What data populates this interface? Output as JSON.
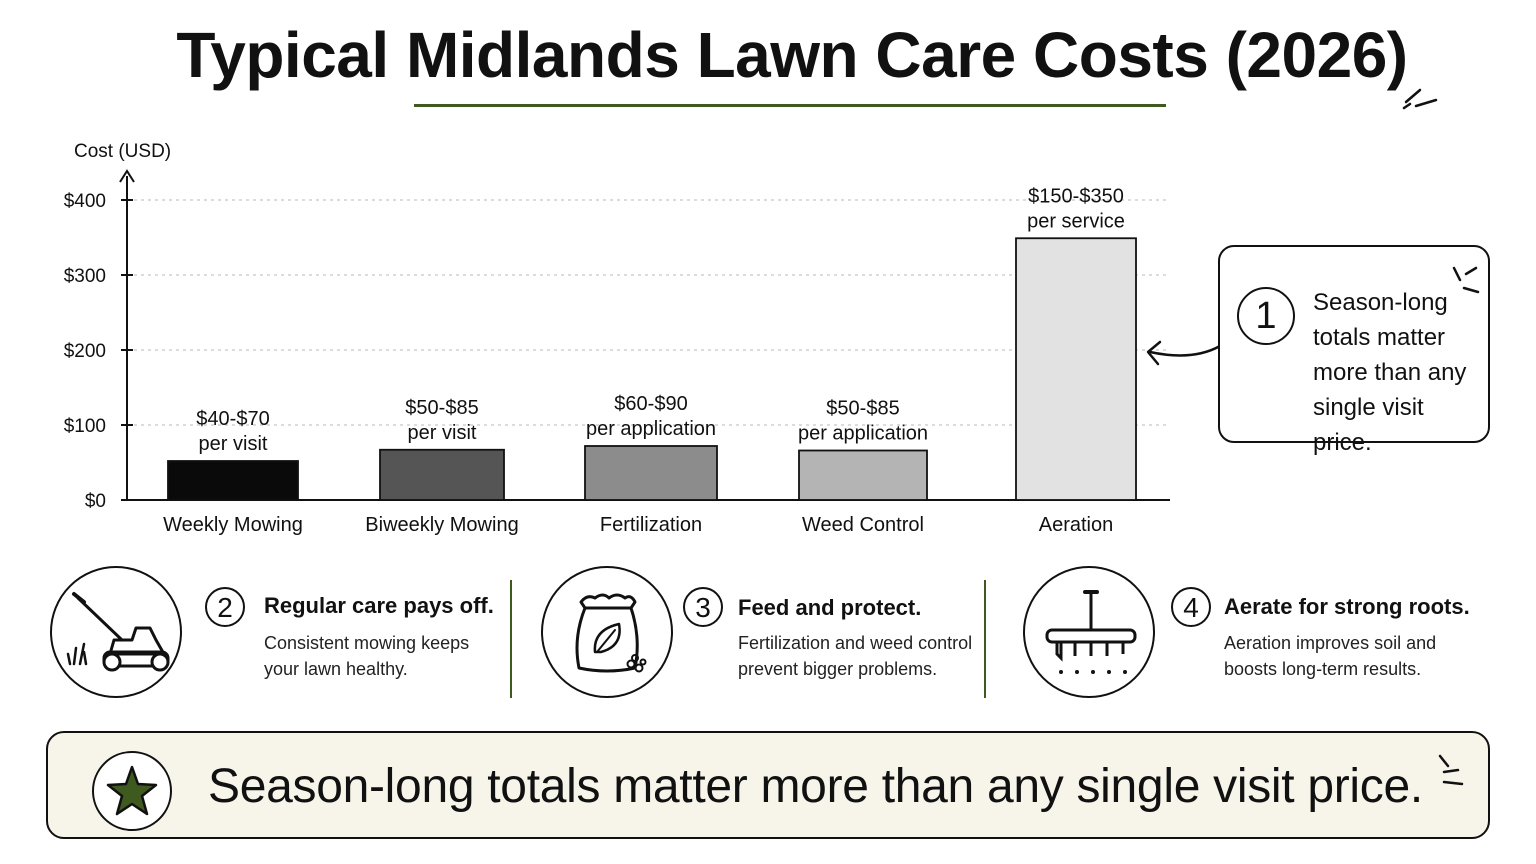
{
  "title": "Typical Midlands Lawn Care Costs (2026)",
  "colors": {
    "accent": "#3e5a1e",
    "banner_bg": "#f7f4ea",
    "star_fill": "#3e5a1e"
  },
  "chart_data": {
    "type": "bar",
    "ylabel": "Cost (USD)",
    "xlabel": "",
    "ylim": [
      0,
      400
    ],
    "yticks": [
      {
        "value": 0,
        "label": "$0"
      },
      {
        "value": 100,
        "label": "$100"
      },
      {
        "value": 200,
        "label": "$200"
      },
      {
        "value": 300,
        "label": "$300"
      },
      {
        "value": 400,
        "label": "$400"
      }
    ],
    "grid": true,
    "categories": [
      "Weekly Mowing",
      "Biweekly Mowing",
      "Fertilization",
      "Weed Control",
      "Aeration"
    ],
    "values": [
      52,
      67,
      72,
      66,
      349
    ],
    "bar_colors": [
      "#0a0a0a",
      "#555555",
      "#8c8c8c",
      "#b4b4b4",
      "#e2e2e2"
    ],
    "data_labels": [
      {
        "line1": "$40-$70",
        "line2": "per visit"
      },
      {
        "line1": "$50-$85",
        "line2": "per visit"
      },
      {
        "line1": "$60-$90",
        "line2": "per application"
      },
      {
        "line1": "$50-$85",
        "line2": "per application"
      },
      {
        "line1": "$150-$350",
        "line2": "per service"
      }
    ]
  },
  "callout": {
    "number": "1",
    "lines": [
      "Season-long",
      "totals matter",
      "more than any",
      "single visit price."
    ]
  },
  "tips": [
    {
      "number": "2",
      "icon": "lawn-mower-icon",
      "heading": "Regular care pays off.",
      "body": [
        "Consistent mowing keeps",
        "your lawn healthy."
      ]
    },
    {
      "number": "3",
      "icon": "fertilizer-bag-icon",
      "heading": "Feed and protect.",
      "body": [
        "Fertilization and weed control",
        "prevent bigger problems."
      ]
    },
    {
      "number": "4",
      "icon": "aerator-icon",
      "heading": "Aerate for strong roots.",
      "body": [
        "Aeration improves soil and",
        "boosts long-term results."
      ]
    }
  ],
  "banner": {
    "icon": "star-icon",
    "text": "Season-long totals matter more than any single visit price."
  }
}
